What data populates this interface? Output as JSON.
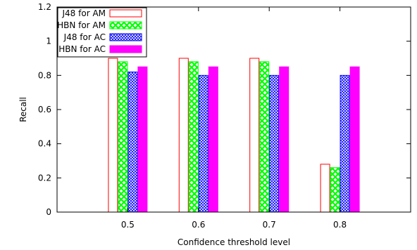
{
  "chart_data": {
    "type": "bar",
    "categories": [
      "0.5",
      "0.6",
      "0.7",
      "0.8"
    ],
    "series": [
      {
        "name": "J48 for AM",
        "values": [
          0.9,
          0.9,
          0.9,
          0.28
        ]
      },
      {
        "name": "HBN for AM",
        "values": [
          0.88,
          0.88,
          0.88,
          0.26
        ]
      },
      {
        "name": "J48 for AC",
        "values": [
          0.82,
          0.8,
          0.8,
          0.8
        ]
      },
      {
        "name": "HBN for AC",
        "values": [
          0.85,
          0.85,
          0.85,
          0.85
        ]
      }
    ],
    "series_styles": [
      {
        "stroke": "#ff0000",
        "fill": "none",
        "pattern": "none"
      },
      {
        "stroke": "#00ff00",
        "fill": "#00ff00",
        "pattern": "crosshatch"
      },
      {
        "stroke": "#0000ff",
        "fill": "#0000ff",
        "pattern": "fine-crosshatch"
      },
      {
        "stroke": "#ff00ff",
        "fill": "#ff00ff",
        "pattern": "solid"
      }
    ],
    "title": "",
    "xlabel": "Confidence threshold level",
    "ylabel": "Recall",
    "ylim": [
      0,
      1.2
    ],
    "yticks": [
      "0",
      "0.2",
      "0.4",
      "0.6",
      "0.8",
      "1",
      "1.2"
    ],
    "xlim": [
      0.4,
      0.9
    ],
    "grid": false,
    "legend": "top-left"
  }
}
